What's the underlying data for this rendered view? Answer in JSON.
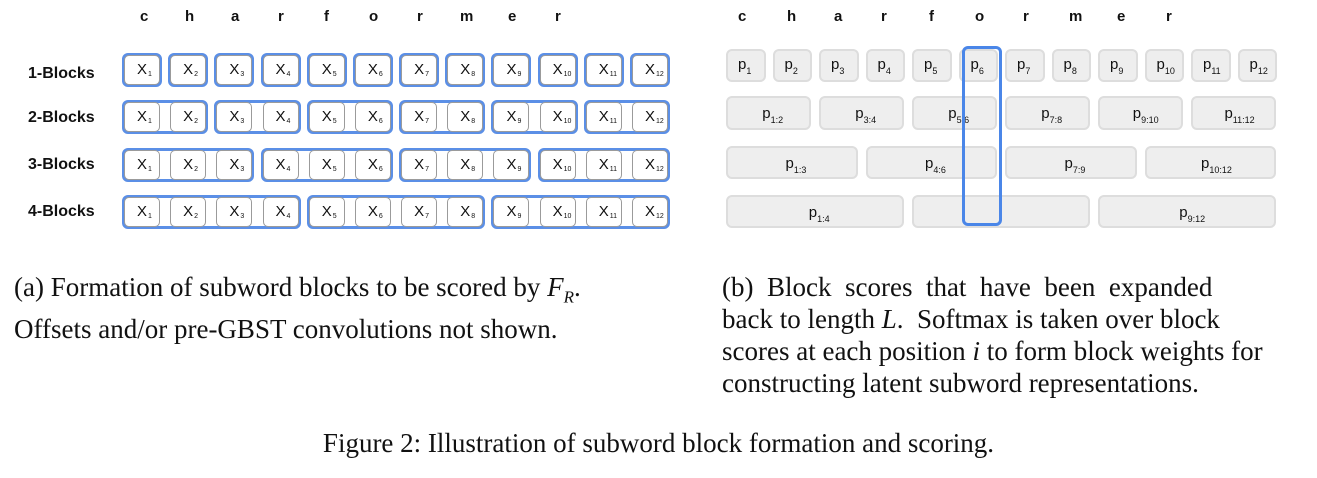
{
  "panel_a": {
    "chars": [
      "c",
      "h",
      "a",
      "r",
      "f",
      "o",
      "r",
      "m",
      "e",
      "r"
    ],
    "row_labels": [
      "1-Blocks",
      "2-Blocks",
      "3-Blocks",
      "4-Blocks"
    ],
    "token": "X",
    "subscripts": [
      "1",
      "2",
      "3",
      "4",
      "5",
      "6",
      "7",
      "8",
      "9",
      "10",
      "11",
      "12"
    ],
    "block_sizes": [
      1,
      2,
      3,
      4
    ]
  },
  "panel_b": {
    "chars": [
      "c",
      "h",
      "a",
      "r",
      "f",
      "o",
      "r",
      "m",
      "e",
      "r"
    ],
    "token": "p",
    "row1": [
      "1",
      "2",
      "3",
      "4",
      "5",
      "6",
      "7",
      "8",
      "9",
      "10",
      "11",
      "12"
    ],
    "row2": [
      "1:2",
      "3:4",
      "5:6",
      "7:8",
      "9:10",
      "11:12"
    ],
    "row3": [
      "1:3",
      "4:6",
      "7:9",
      "10:12"
    ],
    "row4": [
      "1:4",
      "",
      "9:12"
    ],
    "highlighted_position": "6"
  },
  "captions": {
    "a_prefix": "(a) Formation of subword blocks to be scored by ",
    "a_math": "F",
    "a_math_sub": "R",
    "a_suffix": ".",
    "a_line2": "Offsets and/or pre-GBST convolutions not shown.",
    "b_line1": "(b)  Block  scores  that  have  been  expanded",
    "b_line2_prefix": "back to length ",
    "b_line2_math": "L",
    "b_line2_suffix": ".  Softmax is taken over block",
    "b_line3_prefix": "scores at each position ",
    "b_line3_math": "i",
    "b_line3_suffix": " to form block weights for",
    "b_line4": "constructing latent subword representations.",
    "figure": "Figure 2: Illustration of subword block formation and scoring."
  }
}
